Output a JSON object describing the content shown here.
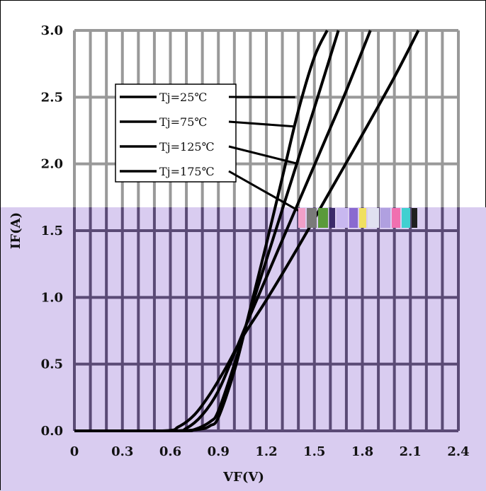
{
  "chart_data": {
    "type": "line",
    "xlabel": "VF(V)",
    "ylabel": "IF(A)",
    "xlim": [
      0,
      2.4
    ],
    "ylim": [
      0,
      3.0
    ],
    "xticks": [
      "0",
      "0.3",
      "0.6",
      "0.9",
      "1.2",
      "1.5",
      "1.8",
      "2.1",
      "2.4"
    ],
    "yticks": [
      "0.0",
      "0.5",
      "1.0",
      "1.5",
      "2.0",
      "2.5",
      "3.0"
    ],
    "grid": true,
    "legend_position": "top-left, with leader lines to curves",
    "series": [
      {
        "name": "Tj=25℃",
        "x": [
          0,
          0.6,
          0.7,
          0.8,
          0.85,
          0.9,
          1.0,
          1.1,
          1.2,
          1.3,
          1.4,
          1.5,
          1.58
        ],
        "y": [
          0,
          0,
          0.003,
          0.015,
          0.04,
          0.1,
          0.45,
          0.92,
          1.4,
          1.9,
          2.4,
          2.8,
          3.0
        ]
      },
      {
        "name": "Tj=75℃",
        "x": [
          0,
          0.65,
          0.75,
          0.85,
          0.9,
          1.0,
          1.1,
          1.2,
          1.3,
          1.4,
          1.5,
          1.65
        ],
        "y": [
          0,
          0,
          0.01,
          0.07,
          0.15,
          0.5,
          0.9,
          1.28,
          1.66,
          2.04,
          2.42,
          3.0
        ]
      },
      {
        "name": "Tj=125℃",
        "x": [
          0,
          0.6,
          0.7,
          0.8,
          0.9,
          1.0,
          1.1,
          1.2,
          1.3,
          1.4,
          1.5,
          1.6,
          1.7,
          1.85
        ],
        "y": [
          0,
          0,
          0.02,
          0.12,
          0.3,
          0.58,
          0.87,
          1.15,
          1.43,
          1.71,
          1.99,
          2.27,
          2.55,
          3.0
        ]
      },
      {
        "name": "Tj=175℃",
        "x": [
          0,
          0.55,
          0.65,
          0.75,
          0.85,
          0.95,
          1.05,
          1.2,
          1.4,
          1.6,
          1.8,
          2.0,
          2.15
        ],
        "y": [
          0,
          0,
          0.03,
          0.12,
          0.28,
          0.48,
          0.7,
          0.98,
          1.38,
          1.8,
          2.22,
          2.65,
          3.0
        ]
      }
    ]
  },
  "colors": {
    "grid_gray": "#999999",
    "grid_dark": "#5a4a75",
    "overlay": "#d9ccf0",
    "curve": "#000000"
  }
}
